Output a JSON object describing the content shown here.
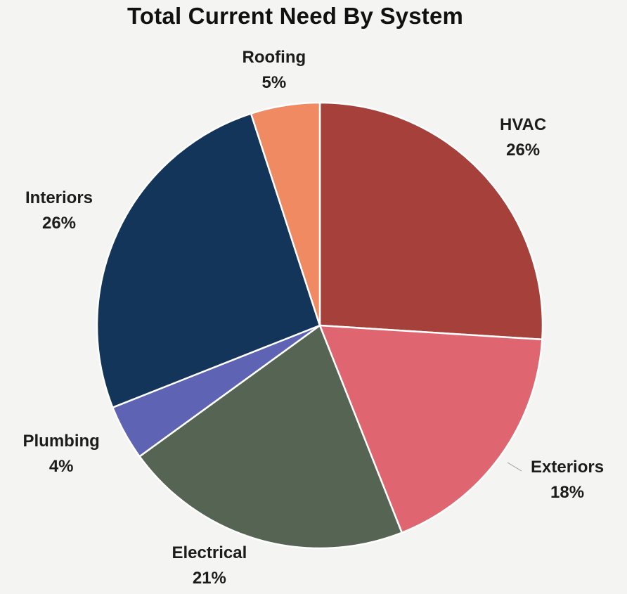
{
  "chart_data": {
    "type": "pie",
    "title": "Total Current Need By System",
    "slices": [
      {
        "label": "HVAC",
        "value": 26,
        "value_label": "26%",
        "color": "#a6403a"
      },
      {
        "label": "Exteriors",
        "value": 18,
        "value_label": "18%",
        "color": "#df6670"
      },
      {
        "label": "Electrical",
        "value": 21,
        "value_label": "21%",
        "color": "#566453"
      },
      {
        "label": "Plumbing",
        "value": 4,
        "value_label": "4%",
        "color": "#5e63b4"
      },
      {
        "label": "Interiors",
        "value": 26,
        "value_label": "26%",
        "color": "#13355a"
      },
      {
        "label": "Roofing",
        "value": 5,
        "value_label": "5%",
        "color": "#ef8a63"
      }
    ]
  }
}
